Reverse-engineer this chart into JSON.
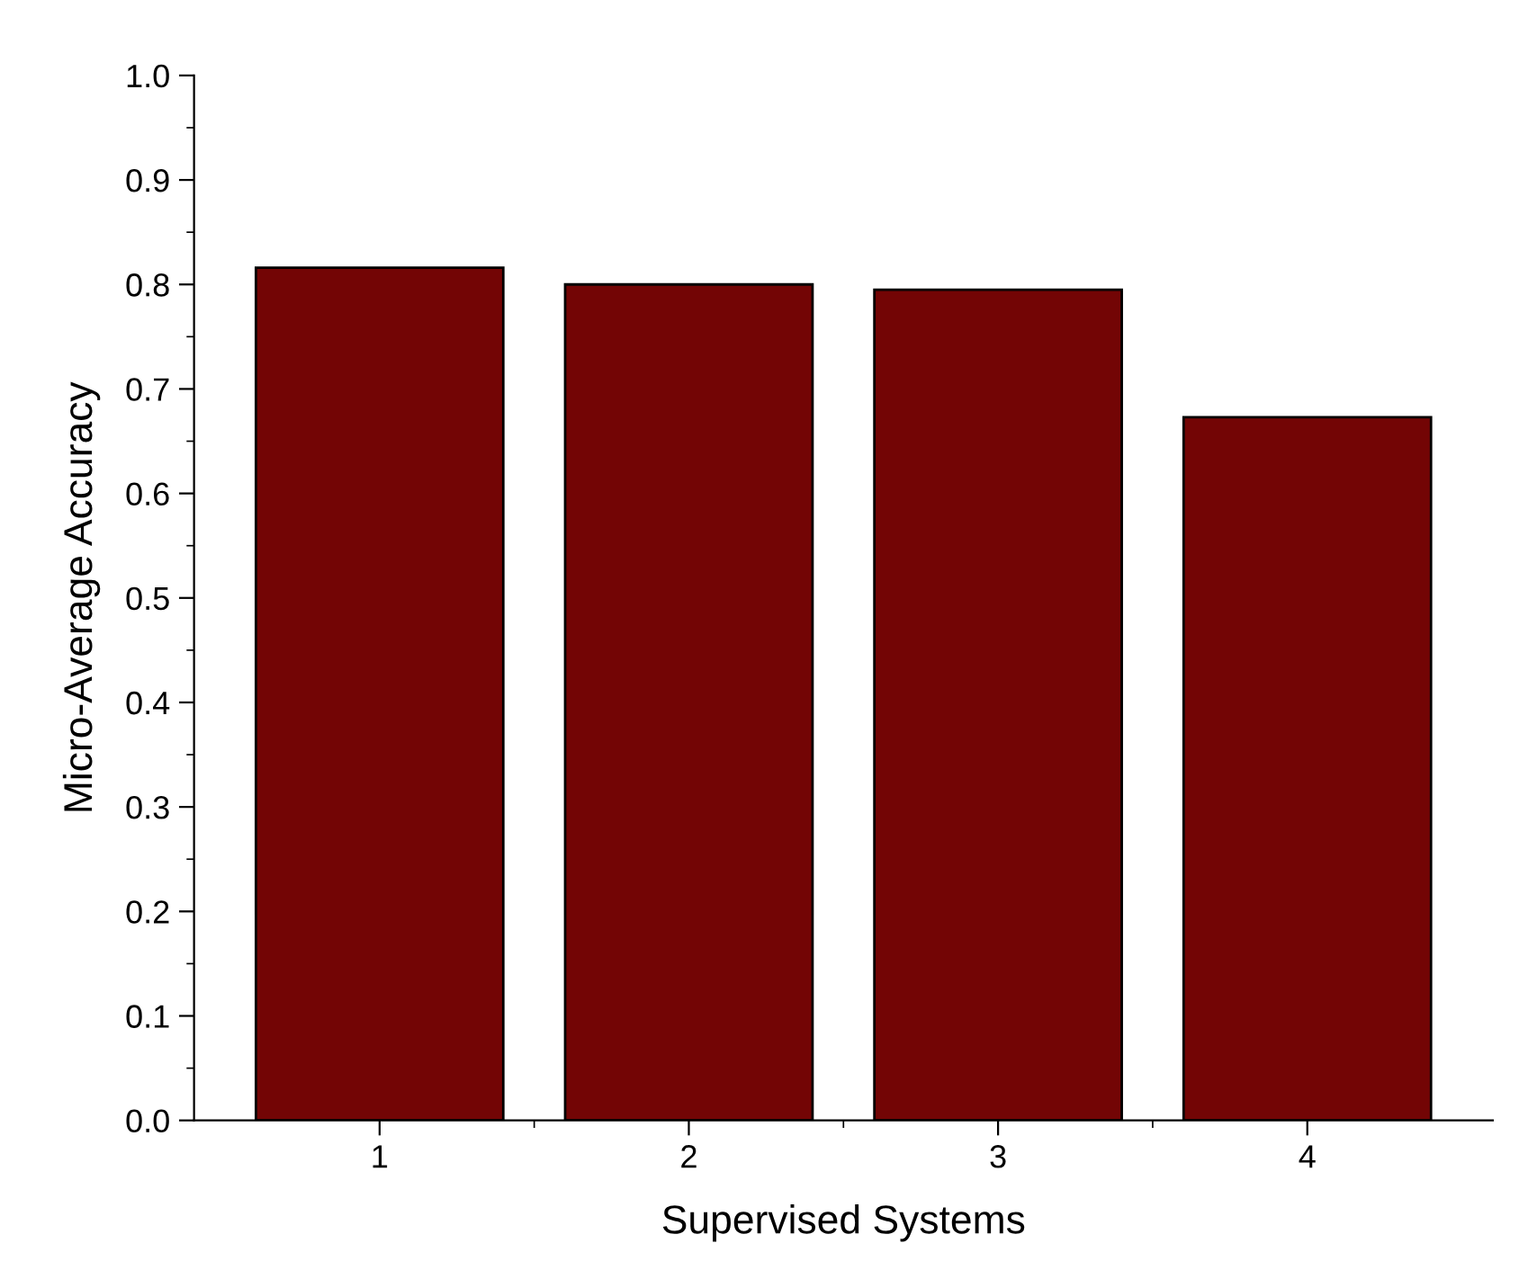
{
  "chart_data": {
    "type": "bar",
    "xlabel": "Supervised Systems",
    "ylabel": "Micro-Average Accuracy",
    "categories": [
      "1",
      "2",
      "3",
      "4"
    ],
    "values": [
      0.816,
      0.8,
      0.795,
      0.673
    ],
    "color": "#730505",
    "ylim": [
      0,
      1.0
    ],
    "yticks": [
      {
        "value": 0,
        "label": "0.0"
      },
      0.1,
      0.2,
      0.3,
      0.4,
      0.5,
      0.6,
      0.7,
      0.8,
      0.9,
      {
        "value": 1.0,
        "label": "1.0"
      }
    ],
    "grid": false,
    "legend": false
  }
}
